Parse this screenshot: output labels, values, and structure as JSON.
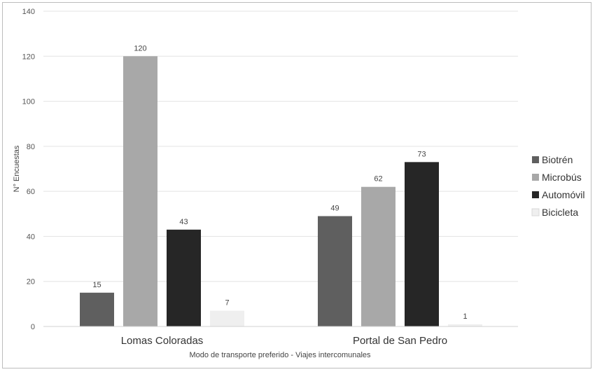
{
  "chart_data": {
    "type": "bar",
    "categories": [
      "Lomas Coloradas",
      "Portal de San Pedro"
    ],
    "series": [
      {
        "name": "Biotrén",
        "color": "#5f5f5f",
        "values": [
          15,
          49
        ]
      },
      {
        "name": "Microbús",
        "color": "#a8a8a8",
        "values": [
          120,
          62
        ]
      },
      {
        "name": "Automóvil",
        "color": "#262626",
        "values": [
          43,
          73
        ]
      },
      {
        "name": "Bicicleta",
        "color": "#efefef",
        "values": [
          7,
          1
        ]
      }
    ],
    "title": "",
    "xlabel": "Modo de transporte preferido - Viajes intercomunales",
    "ylabel": "N° Encuestas",
    "ylim": [
      0,
      140
    ],
    "yticks": [
      0,
      20,
      40,
      60,
      80,
      100,
      120,
      140
    ],
    "grid": true,
    "legend_position": "right"
  }
}
